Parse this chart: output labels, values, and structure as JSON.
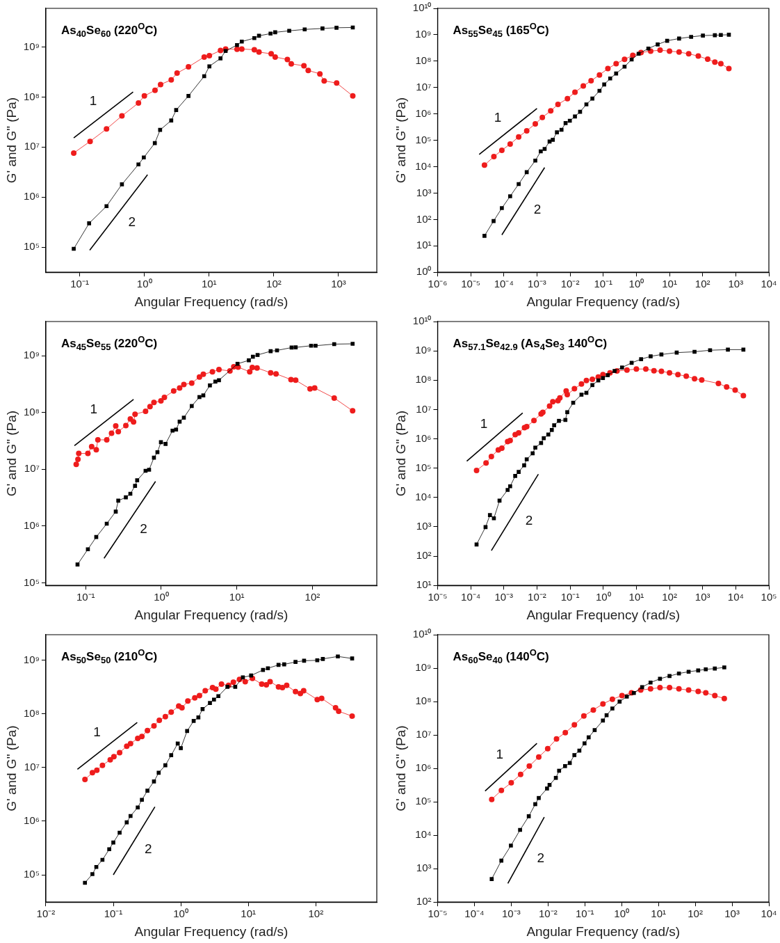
{
  "chart_data": [
    {
      "type": "line",
      "title": "As$_{40}$Se$_{60}$ (220$^{O}$C)",
      "xlabel": "Angular Frequency (rad/s)",
      "ylabel": "G' and G\" (Pa)",
      "log": "xy",
      "xlim": [
        0.03,
        3900
      ],
      "ylim": [
        31600,
        5900000000.0
      ],
      "xticks": [
        {
          "value": 0.1,
          "label": "10⁻¹"
        },
        {
          "value": 1,
          "label": "10⁰"
        },
        {
          "value": 10,
          "label": "10¹"
        },
        {
          "value": 100,
          "label": "10²"
        },
        {
          "value": 1000,
          "label": "10³"
        }
      ],
      "yticks": [
        {
          "value": 100000.0,
          "label": "10⁵"
        },
        {
          "value": 1000000.0,
          "label": "10⁶"
        },
        {
          "value": 10000000.0,
          "label": "10⁷"
        },
        {
          "value": 100000000.0,
          "label": "10⁸"
        },
        {
          "value": 1000000000.0,
          "label": "10⁹"
        }
      ],
      "series": [
        {
          "color": "#000000",
          "marker": "square",
          "x": [
            0.081,
            0.14,
            0.26,
            0.45,
            0.81,
            0.98,
            1.45,
            1.75,
            2.6,
            3.1,
            4.8,
            8.4,
            10.1,
            15,
            18,
            27,
            32,
            50,
            59,
            89,
            105,
            173,
            300,
            565,
            930,
            1660
          ],
          "values": [
            93000.0,
            300000.0,
            660000.0,
            1800000.0,
            4500000.0,
            6200000.0,
            12000000.0,
            22000000.0,
            34000000.0,
            55000000.0,
            105000000.0,
            260000000.0,
            410000000.0,
            590000000.0,
            830000000.0,
            1090000000.0,
            1280000000.0,
            1500000000.0,
            1670000000.0,
            1850000000.0,
            1960000000.0,
            2100000000.0,
            2240000000.0,
            2340000000.0,
            2420000000.0,
            2450000000.0
          ]
        },
        {
          "color": "#ee1c1c",
          "marker": "circle",
          "x": [
            0.081,
            0.145,
            0.26,
            0.45,
            0.81,
            1.0,
            1.46,
            1.78,
            2.6,
            3.2,
            4.8,
            8.4,
            10.1,
            15,
            18,
            27,
            32,
            50,
            59,
            91,
            105,
            162,
            186,
            292,
            340,
            515,
            600,
            935,
            1660
          ],
          "values": [
            7600000.0,
            13000000.0,
            23000000.0,
            42000000.0,
            76000000.0,
            105000000.0,
            136000000.0,
            178000000.0,
            220000000.0,
            300000000.0,
            400000000.0,
            630000000.0,
            670000000.0,
            850000000.0,
            910000000.0,
            900000000.0,
            910000000.0,
            880000000.0,
            790000000.0,
            730000000.0,
            630000000.0,
            560000000.0,
            460000000.0,
            420000000.0,
            340000000.0,
            290000000.0,
            210000000.0,
            190000000.0,
            105000000.0
          ]
        },
        {
          "color": "#000000",
          "marker": "none",
          "x": [
            0.081,
            0.67
          ],
          "values": [
            15300000.0,
            126000000.0
          ]
        },
        {
          "color": "#000000",
          "marker": "none",
          "x": [
            0.143,
            1.12
          ],
          "values": [
            87000.0,
            2800000.0
          ]
        }
      ],
      "annotations": [
        "1",
        "2"
      ]
    },
    {
      "type": "line",
      "title": "As$_{55}$Se$_{45}$ (165$^{O}$C)",
      "xlabel": "Angular Frequency (rad/s)",
      "ylabel": "G' and G\" (Pa)",
      "log": "xy",
      "xlim": [
        1e-06,
        10000.0
      ],
      "ylim": [
        1,
        10000000000.0
      ],
      "xticks": [
        {
          "value": 1e-06,
          "label": "10⁻⁶"
        },
        {
          "value": 1e-05,
          "label": "10⁻⁵"
        },
        {
          "value": 0.0001,
          "label": "10⁻⁴"
        },
        {
          "value": 0.001,
          "label": "10⁻³"
        },
        {
          "value": 0.01,
          "label": "10⁻²"
        },
        {
          "value": 0.1,
          "label": "10⁻¹"
        },
        {
          "value": 1,
          "label": "10⁰"
        },
        {
          "value": 10,
          "label": "10¹"
        },
        {
          "value": 100,
          "label": "10²"
        },
        {
          "value": 1000,
          "label": "10³"
        },
        {
          "value": 10000,
          "label": "10⁴"
        }
      ],
      "yticks": [
        {
          "value": 1,
          "label": "10⁰"
        },
        {
          "value": 10,
          "label": "10¹"
        },
        {
          "value": 100,
          "label": "10²"
        },
        {
          "value": 1000,
          "label": "10³"
        },
        {
          "value": 10000.0,
          "label": "10⁴"
        },
        {
          "value": 100000.0,
          "label": "10⁵"
        },
        {
          "value": 1000000.0,
          "label": "10⁶"
        },
        {
          "value": 10000000.0,
          "label": "10⁷"
        },
        {
          "value": 100000000.0,
          "label": "10⁸"
        },
        {
          "value": 1000000000.0,
          "label": "10⁹"
        },
        {
          "value": 10000000000.0,
          "label": "10¹⁰"
        }
      ],
      "series": [
        {
          "color": "#000000",
          "marker": "square",
          "x": [
            2.6e-05,
            4.9e-05,
            8.7e-05,
            0.000155,
            0.00028,
            0.00049,
            0.00089,
            0.0013,
            0.0017,
            0.0024,
            0.003,
            0.004,
            0.0055,
            0.0073,
            0.0098,
            0.014,
            0.02,
            0.031,
            0.047,
            0.077,
            0.107,
            0.162,
            0.245,
            0.44,
            0.72,
            1.17,
            2.3,
            4.4,
            8.5,
            19.5,
            45,
            102,
            234,
            355,
            620
          ],
          "values": [
            24,
            87,
            270,
            760,
            2200,
            6200,
            17000.0,
            38000.0,
            47000.0,
            90000.0,
            105000.0,
            200000.0,
            250000.0,
            450000.0,
            550000.0,
            800000.0,
            1200000.0,
            2300000.0,
            3800000.0,
            7500000.0,
            13000000.0,
            22000000.0,
            34000000.0,
            62000000.0,
            115000000.0,
            190000000.0,
            300000000.0,
            430000000.0,
            590000000.0,
            720000000.0,
            830000000.0,
            930000000.0,
            960000000.0,
            980000000.0,
            1000000000.0
          ]
        },
        {
          "color": "#ee1c1c",
          "marker": "circle",
          "x": [
            2.6e-05,
            5e-05,
            8.7e-05,
            0.000155,
            0.00028,
            0.00049,
            0.00089,
            0.00145,
            0.0026,
            0.0043,
            0.0083,
            0.014,
            0.025,
            0.043,
            0.077,
            0.138,
            0.245,
            0.44,
            0.78,
            1.38,
            2.7,
            5.2,
            10,
            19.5,
            38,
            74,
            142,
            234,
            355,
            620
          ],
          "values": [
            11500.0,
            24000.0,
            42000.0,
            72000.0,
            135000.0,
            230000.0,
            420000.0,
            740000.0,
            1300000.0,
            2300000.0,
            3800000.0,
            6600000.0,
            11500000.0,
            18000000.0,
            30000000.0,
            52000000.0,
            80000000.0,
            117000000.0,
            165000000.0,
            210000000.0,
            240000000.0,
            260000000.0,
            240000000.0,
            220000000.0,
            190000000.0,
            155000000.0,
            118000000.0,
            92000000.0,
            80000000.0,
            52000000.0
          ]
        },
        {
          "color": "#000000",
          "marker": "none",
          "x": [
            1.8e-05,
            0.001
          ],
          "values": [
            29000.0,
            1600000.0
          ]
        },
        {
          "color": "#000000",
          "marker": "none",
          "x": [
            8.7e-05,
            0.0017
          ],
          "values": [
            26,
            9300
          ]
        }
      ],
      "annotations": [
        "1",
        "2"
      ]
    },
    {
      "type": "line",
      "title": "As$_{45}$Se$_{55}$ (220$^{O}$C)",
      "xlabel": "Angular Frequency (rad/s)",
      "ylabel": "G' and G\" (Pa)",
      "log": "xy",
      "xlim": [
        0.0297,
        710
      ],
      "ylim": [
        90000,
        4000000000.0
      ],
      "xticks": [
        {
          "value": 0.1,
          "label": "10⁻¹"
        },
        {
          "value": 1,
          "label": "10⁰"
        },
        {
          "value": 10,
          "label": "10¹"
        },
        {
          "value": 100,
          "label": "10²"
        }
      ],
      "yticks": [
        {
          "value": 100000.0,
          "label": "10⁵"
        },
        {
          "value": 1000000.0,
          "label": "10⁶"
        },
        {
          "value": 10000000.0,
          "label": "10⁷"
        },
        {
          "value": 100000000.0,
          "label": "10⁸"
        },
        {
          "value": 1000000000.0,
          "label": "10⁹"
        }
      ],
      "series": [
        {
          "color": "#000000",
          "marker": "square",
          "x": [
            0.078,
            0.107,
            0.138,
            0.19,
            0.25,
            0.27,
            0.34,
            0.39,
            0.45,
            0.48,
            0.62,
            0.69,
            0.8,
            0.89,
            0.99,
            1.14,
            1.41,
            1.57,
            1.75,
            1.99,
            2.53,
            3.2,
            3.6,
            4.4,
            5.2,
            5.8,
            10.2,
            14.4,
            16.3,
            18.8,
            28,
            34,
            53,
            60,
            96,
            110,
            194,
            340
          ],
          "values": [
            210000.0,
            390000.0,
            640000.0,
            1100000.0,
            1800000.0,
            2800000.0,
            3200000.0,
            3700000.0,
            5100000.0,
            6400000.0,
            9400000.0,
            9800000.0,
            16000000.0,
            20000000.0,
            30000000.0,
            28000000.0,
            48000000.0,
            50000000.0,
            69000000.0,
            81000000.0,
            130000000.0,
            187000000.0,
            200000000.0,
            300000000.0,
            350000000.0,
            370000000.0,
            720000000.0,
            830000000.0,
            960000000.0,
            1030000000.0,
            1200000000.0,
            1240000000.0,
            1390000000.0,
            1400000000.0,
            1500000000.0,
            1500000000.0,
            1600000000.0,
            1620000000.0
          ]
        },
        {
          "color": "#ee1c1c",
          "marker": "circle",
          "x": [
            0.075,
            0.079,
            0.081,
            0.107,
            0.12,
            0.138,
            0.145,
            0.19,
            0.22,
            0.25,
            0.27,
            0.34,
            0.39,
            0.43,
            0.45,
            0.62,
            0.71,
            0.8,
            0.99,
            1.1,
            1.46,
            1.75,
            1.99,
            2.53,
            3.2,
            3.6,
            4.75,
            5.8,
            8.1,
            9.1,
            10.4,
            14.8,
            16,
            18.5,
            28,
            33,
            52,
            60,
            93,
            107,
            194,
            340
          ],
          "values": [
            12200000.0,
            15000000.0,
            19000000.0,
            19000000.0,
            25000000.0,
            22000000.0,
            33000000.0,
            33000000.0,
            43000000.0,
            58000000.0,
            46000000.0,
            59000000.0,
            77000000.0,
            68000000.0,
            93000000.0,
            105000000.0,
            127000000.0,
            150000000.0,
            160000000.0,
            185000000.0,
            240000000.0,
            270000000.0,
            310000000.0,
            330000000.0,
            420000000.0,
            470000000.0,
            520000000.0,
            570000000.0,
            540000000.0,
            640000000.0,
            630000000.0,
            520000000.0,
            620000000.0,
            610000000.0,
            500000000.0,
            480000000.0,
            380000000.0,
            370000000.0,
            260000000.0,
            270000000.0,
            180000000.0,
            107000000.0
          ]
        },
        {
          "color": "#000000",
          "marker": "none",
          "x": [
            0.071,
            0.43
          ],
          "values": [
            26000000.0,
            170000000.0
          ]
        },
        {
          "color": "#000000",
          "marker": "none",
          "x": [
            0.175,
            0.84
          ],
          "values": [
            270000.0,
            6100000.0
          ]
        }
      ],
      "annotations": [
        "1",
        "2"
      ]
    },
    {
      "type": "line",
      "title": "As$_{57.1}$Se$_{42.9}$ (As$_{4}$Se$_{3}$ 140$^{O}$C)",
      "xlabel": "Angular Frequency (rad/s)",
      "ylabel": "G' and G\" (Pa)",
      "log": "xy",
      "xlim": [
        1e-05,
        100000.0
      ],
      "ylim": [
        10,
        10000000000.0
      ],
      "xticks": [
        {
          "value": 1e-05,
          "label": "10⁻⁵"
        },
        {
          "value": 0.0001,
          "label": "10⁻⁴"
        },
        {
          "value": 0.001,
          "label": "10⁻³"
        },
        {
          "value": 0.01,
          "label": "10⁻²"
        },
        {
          "value": 0.1,
          "label": "10⁻¹"
        },
        {
          "value": 1,
          "label": "10⁰"
        },
        {
          "value": 10,
          "label": "10¹"
        },
        {
          "value": 100,
          "label": "10²"
        },
        {
          "value": 1000,
          "label": "10³"
        },
        {
          "value": 10000,
          "label": "10⁴"
        },
        {
          "value": 100000,
          "label": "10⁵"
        }
      ],
      "yticks": [
        {
          "value": 10,
          "label": "10¹"
        },
        {
          "value": 100,
          "label": "10²"
        },
        {
          "value": 1000,
          "label": "10³"
        },
        {
          "value": 10000.0,
          "label": "10⁴"
        },
        {
          "value": 100000.0,
          "label": "10⁵"
        },
        {
          "value": 1000000.0,
          "label": "10⁶"
        },
        {
          "value": 10000000.0,
          "label": "10⁷"
        },
        {
          "value": 100000000.0,
          "label": "10⁸"
        },
        {
          "value": 1000000000.0,
          "label": "10⁹"
        },
        {
          "value": 10000000000.0,
          "label": "10¹⁰"
        }
      ],
      "series": [
        {
          "color": "#000000",
          "marker": "square",
          "x": [
            0.00015,
            0.00028,
            0.00038,
            0.0005,
            0.00074,
            0.0013,
            0.00155,
            0.0022,
            0.0028,
            0.0041,
            0.0049,
            0.0074,
            0.0089,
            0.0133,
            0.016,
            0.022,
            0.028,
            0.033,
            0.046,
            0.072,
            0.082,
            0.124,
            0.22,
            0.31,
            0.47,
            0.71,
            0.98,
            1.37,
            2.2,
            3.7,
            7.2,
            13.9,
            27,
            57,
            165,
            570,
            1680,
            5800,
            17000
          ],
          "values": [
            250,
            980,
            2500,
            1950,
            7800,
            18000.0,
            24000.0,
            54000.0,
            74000.0,
            125000.0,
            200000.0,
            320000.0,
            500000.0,
            720000.0,
            1050000.0,
            1400000.0,
            2000000.0,
            2900000.0,
            4100000.0,
            4400000.0,
            8100000.0,
            17000000.0,
            32000000.0,
            37000000.0,
            68000000.0,
            98000000.0,
            118000000.0,
            148000000.0,
            206000000.0,
            270000000.0,
            390000000.0,
            520000000.0,
            650000000.0,
            750000000.0,
            870000000.0,
            930000000.0,
            1050000000.0,
            1100000000.0,
            1100000000.0
          ]
        },
        {
          "color": "#ee1c1c",
          "marker": "circle",
          "x": [
            0.00015,
            0.00029,
            0.00042,
            0.00068,
            0.00087,
            0.0013,
            0.00155,
            0.0022,
            0.0028,
            0.0042,
            0.0049,
            0.0081,
            0.0133,
            0.015,
            0.024,
            0.03,
            0.043,
            0.049,
            0.076,
            0.082,
            0.135,
            0.22,
            0.31,
            0.47,
            0.71,
            0.98,
            1.6,
            2.6,
            5.2,
            10,
            19.3,
            34,
            57,
            100,
            180,
            320,
            570,
            940,
            3000,
            5300,
            9600,
            17000
          ],
          "values": [
            83000.0,
            150000.0,
            250000.0,
            420000.0,
            480000.0,
            800000.0,
            870000.0,
            1400000.0,
            1600000.0,
            2400000.0,
            2600000.0,
            4200000.0,
            7100000.0,
            8000000.0,
            13000000.0,
            18500000.0,
            20000000.0,
            25000000.0,
            43000000.0,
            32000000.0,
            51000000.0,
            74000000.0,
            98000000.0,
            107000000.0,
            128000000.0,
            155000000.0,
            178000000.0,
            206000000.0,
            220000000.0,
            240000000.0,
            240000000.0,
            210000000.0,
            200000000.0,
            178000000.0,
            155000000.0,
            137000000.0,
            112000000.0,
            102000000.0,
            77000000.0,
            59000000.0,
            46000000.0,
            29600000.0
          ]
        },
        {
          "color": "#000000",
          "marker": "none",
          "x": [
            7.6e-05,
            0.0037
          ],
          "values": [
            174000.0,
            7600000.0
          ]
        },
        {
          "color": "#000000",
          "marker": "none",
          "x": [
            0.00042,
            0.011
          ],
          "values": [
            155,
            62000.0
          ]
        }
      ],
      "annotations": [
        "1",
        "2"
      ]
    },
    {
      "type": "line",
      "title": "As$_{50}$Se$_{50}$ (210$^{O}$C)",
      "xlabel": "Angular Frequency (rad/s)",
      "ylabel": "G' and G\" (Pa)",
      "log": "xy",
      "xlim": [
        0.01,
        800
      ],
      "ylim": [
        31000,
        3000000000.0
      ],
      "xticks": [
        {
          "value": 0.01,
          "label": "10⁻²"
        },
        {
          "value": 0.1,
          "label": "10⁻¹"
        },
        {
          "value": 1,
          "label": "10⁰"
        },
        {
          "value": 10,
          "label": "10¹"
        },
        {
          "value": 100,
          "label": "10²"
        }
      ],
      "yticks": [
        {
          "value": 100000.0,
          "label": "10⁵"
        },
        {
          "value": 1000000.0,
          "label": "10⁶"
        },
        {
          "value": 10000000.0,
          "label": "10⁷"
        },
        {
          "value": 100000000.0,
          "label": "10⁸"
        },
        {
          "value": 1000000000.0,
          "label": "10⁹"
        }
      ],
      "series": [
        {
          "color": "#000000",
          "marker": "square",
          "x": [
            0.038,
            0.049,
            0.056,
            0.069,
            0.087,
            0.1,
            0.124,
            0.158,
            0.18,
            0.23,
            0.265,
            0.32,
            0.4,
            0.47,
            0.59,
            0.72,
            0.9,
            1,
            1.24,
            1.55,
            1.82,
            2.1,
            2.7,
            3.1,
            3.6,
            4.9,
            6.4,
            8.3,
            11,
            16.5,
            19.5,
            28,
            34,
            50,
            67,
            105,
            127,
            212,
            345
          ],
          "values": [
            71000.0,
            103000.0,
            140000.0,
            190000.0,
            300000.0,
            400000.0,
            610000.0,
            950000.0,
            1250000.0,
            1800000.0,
            2500000.0,
            3700000.0,
            5500000.0,
            8000000.0,
            11000000.0,
            17000000.0,
            28000000.0,
            23000000.0,
            48000000.0,
            74000000.0,
            86000000.0,
            123000000.0,
            160000000.0,
            185000000.0,
            215000000.0,
            320000000.0,
            320000000.0,
            480000000.0,
            520000000.0,
            660000000.0,
            710000000.0,
            820000000.0,
            840000000.0,
            930000000.0,
            980000000.0,
            1000000000.0,
            1060000000.0,
            1180000000.0,
            1080000000.0
          ]
        },
        {
          "color": "#ee1c1c",
          "marker": "circle",
          "x": [
            0.038,
            0.049,
            0.057,
            0.069,
            0.09,
            0.102,
            0.124,
            0.158,
            0.18,
            0.23,
            0.265,
            0.32,
            0.4,
            0.48,
            0.59,
            0.72,
            0.93,
            1.04,
            1.27,
            1.61,
            1.89,
            2.3,
            2.95,
            3.3,
            4.0,
            5.1,
            6.0,
            7.4,
            9.0,
            11.5,
            15.8,
            18.5,
            21,
            28,
            32,
            37,
            50,
            59,
            66,
            105,
            122,
            196,
            218,
            345
          ],
          "values": [
            6000000.0,
            8000000.0,
            8900000.0,
            11000000.0,
            14000000.0,
            16000000.0,
            19000000.0,
            25000000.0,
            28000000.0,
            35000000.0,
            38000000.0,
            49000000.0,
            60000000.0,
            76000000.0,
            89000000.0,
            108000000.0,
            140000000.0,
            130000000.0,
            174000000.0,
            200000000.0,
            220000000.0,
            270000000.0,
            310000000.0,
            290000000.0,
            360000000.0,
            340000000.0,
            390000000.0,
            440000000.0,
            400000000.0,
            460000000.0,
            360000000.0,
            350000000.0,
            400000000.0,
            320000000.0,
            310000000.0,
            340000000.0,
            260000000.0,
            240000000.0,
            270000000.0,
            185000000.0,
            195000000.0,
            130000000.0,
            112000000.0,
            91000000.0
          ]
        },
        {
          "color": "#000000",
          "marker": "none",
          "x": [
            0.0294,
            0.226
          ],
          "values": [
            9300000.0,
            69000000.0
          ]
        },
        {
          "color": "#000000",
          "marker": "none",
          "x": [
            0.1,
            0.413
          ],
          "values": [
            100000.0,
            1850000.0
          ]
        }
      ],
      "annotations": [
        "1",
        "2"
      ]
    },
    {
      "type": "line",
      "title": "As$_{60}$Se$_{40}$ (140$^{O}$C)",
      "xlabel": "Angular Frequency (rad/s)",
      "ylabel": "G' and G\" (Pa)",
      "log": "xy",
      "xlim": [
        1e-05,
        10000.0
      ],
      "ylim": [
        100,
        10000000000.0
      ],
      "xticks": [
        {
          "value": 1e-05,
          "label": "10⁻⁵"
        },
        {
          "value": 0.0001,
          "label": "10⁻⁴"
        },
        {
          "value": 0.001,
          "label": "10⁻³"
        },
        {
          "value": 0.01,
          "label": "10⁻²"
        },
        {
          "value": 0.1,
          "label": "10⁻¹"
        },
        {
          "value": 1,
          "label": "10⁰"
        },
        {
          "value": 10,
          "label": "10¹"
        },
        {
          "value": 100,
          "label": "10²"
        },
        {
          "value": 1000,
          "label": "10³"
        },
        {
          "value": 10000,
          "label": "10⁴"
        }
      ],
      "yticks": [
        {
          "value": 100,
          "label": "10²"
        },
        {
          "value": 1000,
          "label": "10³"
        },
        {
          "value": 10000.0,
          "label": "10⁴"
        },
        {
          "value": 100000.0,
          "label": "10⁵"
        },
        {
          "value": 1000000.0,
          "label": "10⁶"
        },
        {
          "value": 10000000.0,
          "label": "10⁷"
        },
        {
          "value": 100000000.0,
          "label": "10⁸"
        },
        {
          "value": 1000000000.0,
          "label": "10⁹"
        },
        {
          "value": 10000000000.0,
          "label": "10¹⁰"
        }
      ],
      "series": [
        {
          "color": "#000000",
          "marker": "square",
          "x": [
            0.000295,
            0.00054,
            0.00098,
            0.00174,
            0.003,
            0.0045,
            0.0056,
            0.0094,
            0.011,
            0.0163,
            0.02,
            0.029,
            0.039,
            0.052,
            0.071,
            0.098,
            0.127,
            0.185,
            0.31,
            0.39,
            0.56,
            0.88,
            1.38,
            2.15,
            3.6,
            6.1,
            11,
            20,
            36,
            66,
            120,
            193,
            340,
            615
          ],
          "values": [
            490,
            1740,
            4900,
            14400.0,
            37000.0,
            85000.0,
            130000.0,
            250000.0,
            320000.0,
            520000.0,
            850000.0,
            1170000.0,
            1450000.0,
            2500000.0,
            3400000.0,
            5600000.0,
            8500000.0,
            14000000.0,
            27000000.0,
            39000000.0,
            62000000.0,
            100000000.0,
            140000000.0,
            180000000.0,
            270000000.0,
            370000000.0,
            480000000.0,
            580000000.0,
            690000000.0,
            780000000.0,
            850000000.0,
            920000000.0,
            970000000.0,
            1050000000.0
          ]
        },
        {
          "color": "#ee1c1c",
          "marker": "circle",
          "x": [
            0.000295,
            0.00054,
            0.001,
            0.0018,
            0.0031,
            0.0056,
            0.0098,
            0.017,
            0.0295,
            0.052,
            0.094,
            0.17,
            0.31,
            0.56,
            1.02,
            1.85,
            3.3,
            6.1,
            11,
            20,
            36,
            66,
            120,
            193,
            340,
            615
          ],
          "values": [
            118000.0,
            220000.0,
            370000.0,
            660000.0,
            1170000.0,
            2200000.0,
            3900000.0,
            7600000.0,
            11700000.0,
            20000000.0,
            37000000.0,
            56000000.0,
            85000000.0,
            117000000.0,
            150000000.0,
            183000000.0,
            220000000.0,
            240000000.0,
            260000000.0,
            260000000.0,
            240000000.0,
            220000000.0,
            200000000.0,
            183000000.0,
            150000000.0,
            123000000.0
          ]
        },
        {
          "color": "#000000",
          "marker": "none",
          "x": [
            0.000195,
            0.005
          ],
          "values": [
            210000.0,
            5600000.0
          ]
        },
        {
          "color": "#000000",
          "marker": "none",
          "x": [
            0.00081,
            0.0079
          ],
          "values": [
            360,
            35000.0
          ]
        }
      ],
      "annotations": [
        "1",
        "2"
      ]
    }
  ]
}
